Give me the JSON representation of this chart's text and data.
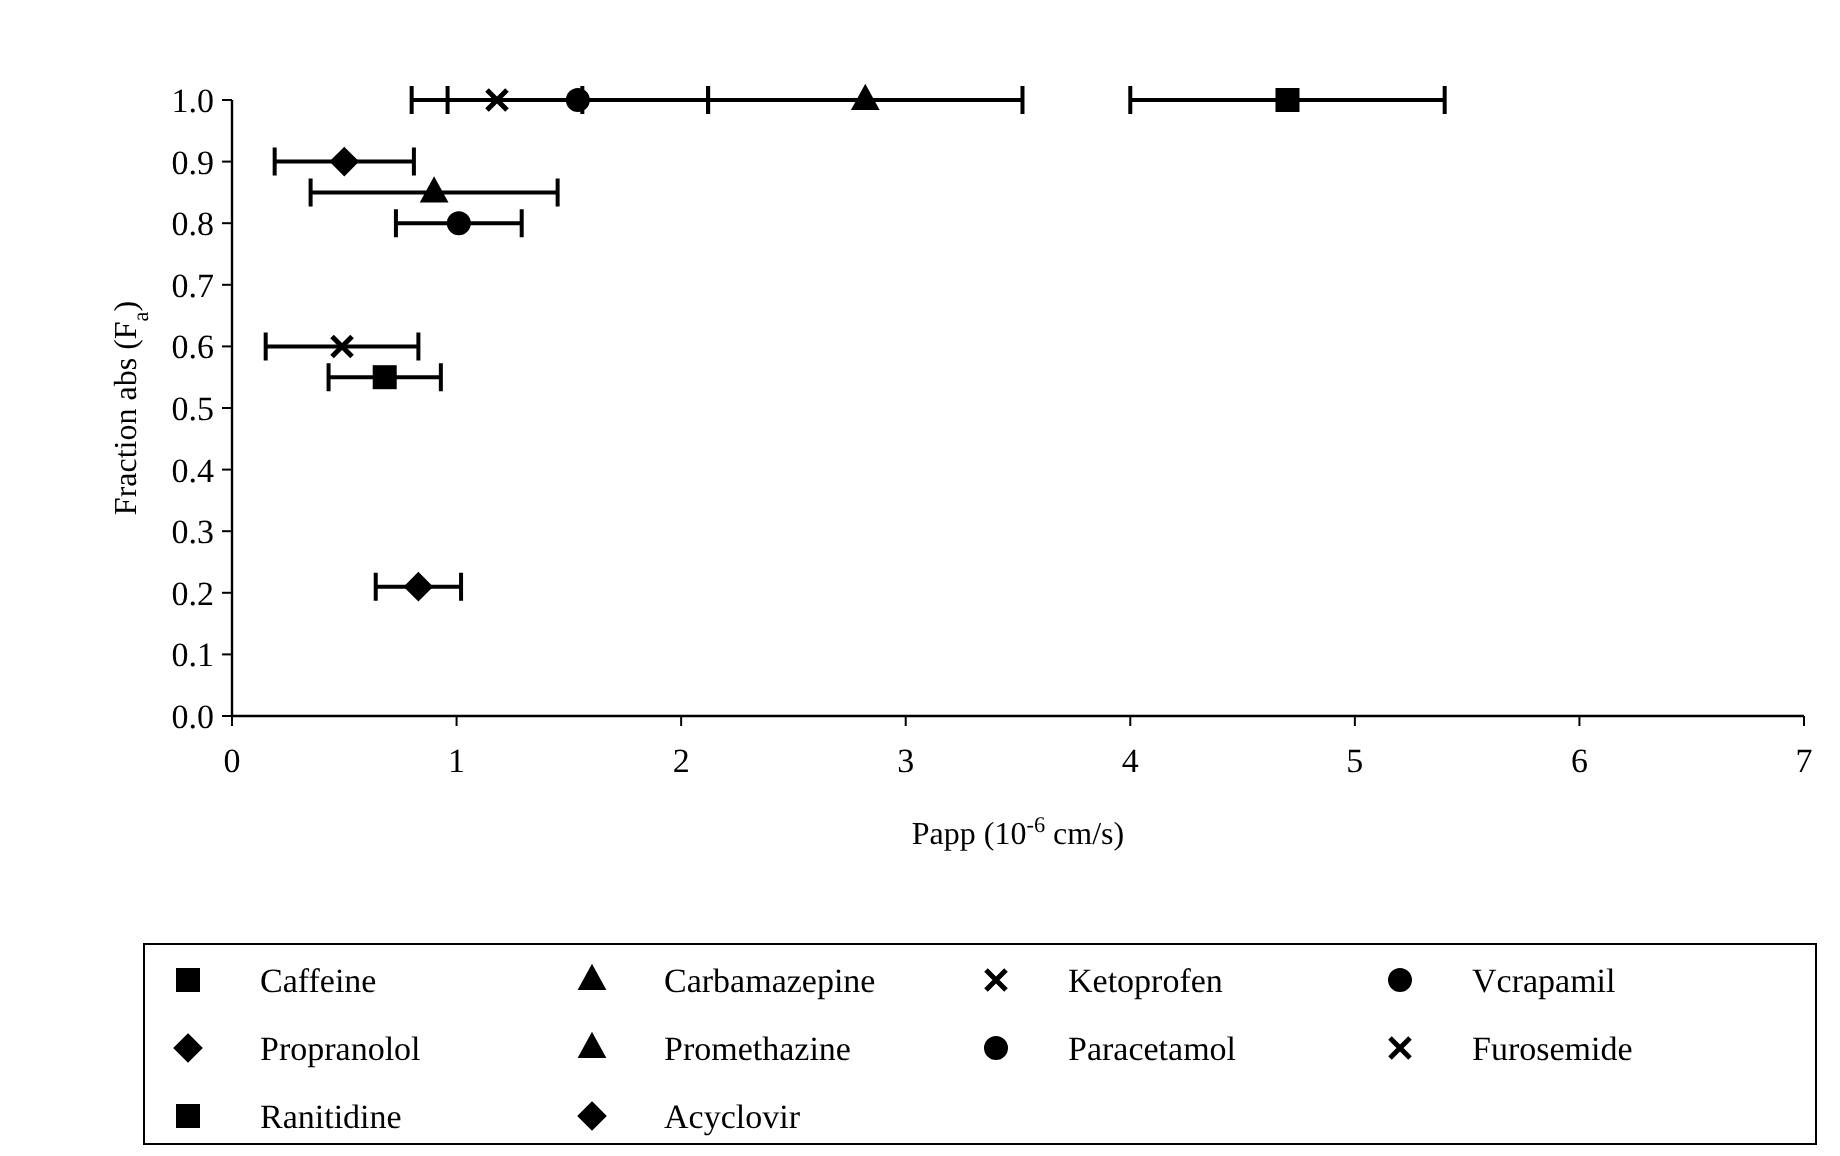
{
  "chart_data": {
    "type": "scatter",
    "xlabel": "Papp (10$^{-6}$ cm/s)",
    "ylabel": "Fraction abs (F$_{a}$)",
    "xlim": [
      0,
      7
    ],
    "xticks": [
      0,
      1,
      2,
      3,
      4,
      5,
      6,
      7
    ],
    "ylim": [
      0,
      1
    ],
    "yticks": [
      {
        "value": 0,
        "label": "0.0"
      },
      0.1,
      0.2,
      0.3,
      0.4,
      0.5,
      0.6,
      0.7,
      0.8,
      0.9,
      {
        "value": 1,
        "label": "1.0"
      }
    ],
    "grid": false,
    "legend": "bottom",
    "series": [
      {
        "name": "Caffeine",
        "color": "#000000",
        "marker": "square",
        "x": [
          4.7
        ],
        "values": [
          1.0
        ],
        "xerrors": [
          0.7
        ]
      },
      {
        "name": "Carbamazepine",
        "color": "#000000",
        "marker": "triangle",
        "x": [
          2.82
        ],
        "values": [
          1.0
        ],
        "xerrors": [
          0.7
        ]
      },
      {
        "name": "Ketoprofen",
        "color": "#000000",
        "marker": "cross",
        "x": [
          1.18
        ],
        "values": [
          1.0
        ],
        "xerrors": [
          0.38
        ]
      },
      {
        "name": "Vcrapamil",
        "color": "#000000",
        "marker": "circle",
        "x": [
          1.54
        ],
        "values": [
          1.0
        ],
        "xerrors": [
          0.58
        ]
      },
      {
        "name": "Propranolol",
        "color": "#000000",
        "marker": "diamond",
        "x": [
          0.5
        ],
        "values": [
          0.9
        ],
        "xerrors": [
          0.31
        ]
      },
      {
        "name": "Promethazine",
        "color": "#000000",
        "marker": "triangle",
        "x": [
          0.9
        ],
        "values": [
          0.85
        ],
        "xerrors": [
          0.55
        ]
      },
      {
        "name": "Paracetamol",
        "color": "#000000",
        "marker": "circle",
        "x": [
          1.01
        ],
        "values": [
          0.8
        ],
        "xerrors": [
          0.28
        ]
      },
      {
        "name": "Furosemide",
        "color": "#000000",
        "marker": "cross",
        "x": [
          0.49
        ],
        "values": [
          0.6
        ],
        "xerrors": [
          0.34
        ]
      },
      {
        "name": "Ranitidine",
        "color": "#000000",
        "marker": "square",
        "x": [
          0.68
        ],
        "values": [
          0.55
        ],
        "xerrors": [
          0.25
        ]
      },
      {
        "name": "Acyclovir",
        "color": "#000000",
        "marker": "diamond",
        "x": [
          0.83
        ],
        "values": [
          0.21
        ],
        "xerrors": [
          0.19
        ]
      }
    ]
  }
}
